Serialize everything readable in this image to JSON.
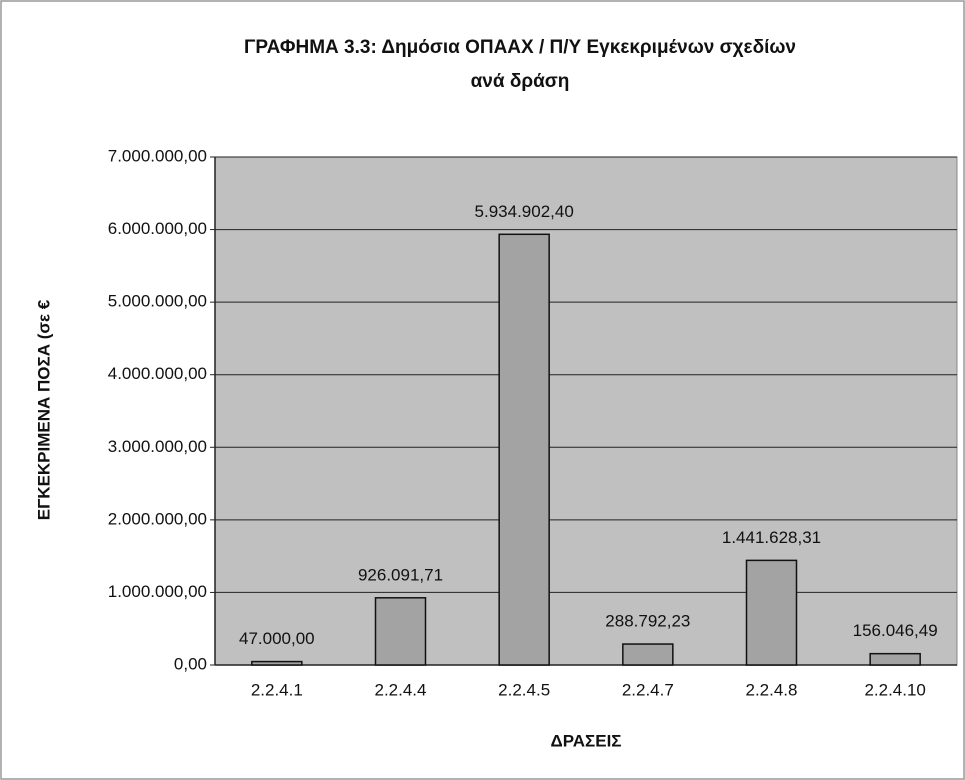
{
  "chart_data": {
    "type": "bar",
    "title": [
      "ΓΡΑΦΗΜΑ 3.3: Δημόσια ΟΠΑΑΧ / Π/Υ Εγκεκριμένων σχεδίων",
      "ανά δράση"
    ],
    "x_label": "ΔΡΑΣΕΙΣ",
    "y_label": "ΕΓΚΕΚΡΙΜΕΝΑ ΠΟΣΑ (σε €",
    "categories": [
      "2.2.4.1",
      "2.2.4.4",
      "2.2.4.5",
      "2.2.4.7",
      "2.2.4.8",
      "2.2.4.10"
    ],
    "values": [
      47000.0,
      926091.71,
      5934902.4,
      288792.23,
      1441628.31,
      156046.49
    ],
    "value_labels": [
      "47.000,00",
      "926.091,71",
      "5.934.902,40",
      "288.792,23",
      "1.441.628,31",
      "156.046,49"
    ],
    "color": "#a3a3a3",
    "ylim": [
      0,
      7000000
    ],
    "yticks": [
      {
        "value": 0,
        "label": "0,00"
      },
      {
        "value": 1000000,
        "label": "1.000.000,00"
      },
      {
        "value": 2000000,
        "label": "2.000.000,00"
      },
      {
        "value": 3000000,
        "label": "3.000.000,00"
      },
      {
        "value": 4000000,
        "label": "4.000.000,00"
      },
      {
        "value": 5000000,
        "label": "5.000.000,00"
      },
      {
        "value": 6000000,
        "label": "6.000.000,00"
      },
      {
        "value": 7000000,
        "label": "7.000.000,00"
      }
    ],
    "grid": true
  }
}
